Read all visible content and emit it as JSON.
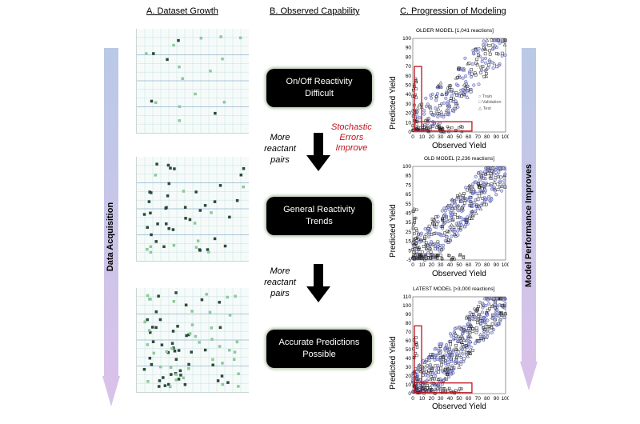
{
  "headers": {
    "a": "A. Dataset Growth",
    "b": "B. Observed Capability",
    "c": "C. Progression of Modeling"
  },
  "side_labels": {
    "left": "Data Acquisition",
    "right": "Model Performance Improves"
  },
  "capabilities": [
    {
      "line1": "On/Off Reactivity",
      "line2": "Difficult"
    },
    {
      "line1": "General Reactivity",
      "line2": "Trends"
    },
    {
      "line1": "Accurate Predictions",
      "line2": "Possible"
    }
  ],
  "more_pairs": [
    {
      "l1": "More",
      "l2": "reactant",
      "l3": "pairs"
    },
    {
      "l1": "More",
      "l2": "reactant",
      "l3": "pairs"
    }
  ],
  "stochastic": {
    "l1": "Stochastic",
    "l2": "Errors",
    "l3": "Improve"
  },
  "plots": [
    {
      "title": "OLDER MODEL [1,041 reactions]",
      "ylabel": "Predicted Yield",
      "xlabel": "Observed Yield",
      "xticks": [
        "0",
        "10",
        "20",
        "30",
        "40",
        "50",
        "60",
        "70",
        "80",
        "90",
        "100"
      ],
      "yticks": [
        "0",
        "10",
        "20",
        "30",
        "40",
        "50",
        "60",
        "70",
        "80",
        "90",
        "100"
      ],
      "legend": [
        "Train",
        "Validation",
        "Test"
      ]
    },
    {
      "title": "OLD MODEL [2,236 reactions]",
      "ylabel": "Predicted Yield",
      "xlabel": "Observed Yield",
      "xticks": [
        "0",
        "10",
        "20",
        "30",
        "40",
        "50",
        "60",
        "70",
        "80",
        "90",
        "100"
      ],
      "yticks": [
        "-5",
        "5",
        "15",
        "25",
        "35",
        "45",
        "55",
        "65",
        "75",
        "85",
        "100"
      ]
    },
    {
      "title": "LATEST MODEL [>3,000 reactions]",
      "ylabel": "Predicted Yield",
      "xlabel": "Observed Yield",
      "xticks": [
        "0",
        "10",
        "20",
        "30",
        "40",
        "50",
        "60",
        "70",
        "80",
        "90",
        "100"
      ],
      "yticks": [
        "0",
        "10",
        "20",
        "30",
        "40",
        "50",
        "60",
        "70",
        "80",
        "90",
        "100",
        "110"
      ]
    }
  ],
  "colors": {
    "arrow_gradient_top": "#b9c9e6",
    "arrow_gradient_bottom": "#d8c2ea",
    "box_bg": "#000000",
    "box_glow": "#b8c8b0",
    "highlight_red": "#c0121c",
    "scatter_blue": "#4a4fa8",
    "heat_dark": "#2b4a3a",
    "heat_light": "#8cc89a"
  }
}
